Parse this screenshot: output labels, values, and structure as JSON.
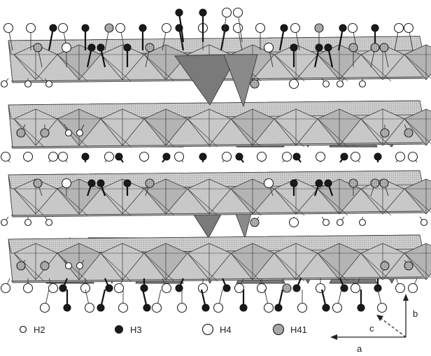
{
  "legend": {
    "items": [
      {
        "label": "H2",
        "symbol": "small-open-circle"
      },
      {
        "label": "H3",
        "symbol": "filled-black-circle"
      },
      {
        "label": "H4",
        "symbol": "large-open-circle"
      },
      {
        "label": "H41",
        "symbol": "hatched-gray-circle"
      }
    ]
  },
  "axes": {
    "a": "a",
    "b": "b",
    "c": "c"
  },
  "colors": {
    "octahedron_fill": "#c8c8c8",
    "octahedron_shadow": "#b4b4b4",
    "tetrahedron_fill": "#7a7a7a",
    "h3_fill": "#1a1a1a",
    "h41_fill": "#9a9a9a"
  }
}
